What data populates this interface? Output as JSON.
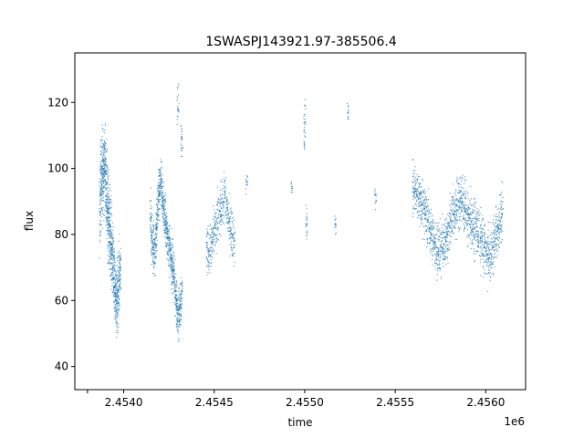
{
  "colors": {
    "points": "#1f77b4",
    "axes": "#000000",
    "background": "#ffffff"
  },
  "chart_data": {
    "type": "scatter",
    "title": "1SWASPJ143921.97-385506.4",
    "xlabel": "time",
    "ylabel": "flux",
    "x_offset_label": "1e6",
    "x_ticks": [
      2453800,
      2454000,
      2454500,
      2455000,
      2455500,
      2456000
    ],
    "x_tick_labels": [
      "",
      "2.4540",
      "2.4545",
      "2.4550",
      "2.4555",
      "2.4560"
    ],
    "y_ticks": [
      40,
      60,
      80,
      100,
      120
    ],
    "y_tick_labels": [
      "40",
      "60",
      "80",
      "100",
      "120"
    ],
    "xlim": [
      2453730,
      2456220
    ],
    "ylim": [
      33,
      135
    ],
    "grid": false,
    "legend": "none",
    "marker": "small dots",
    "series": [
      {
        "x": [
          2453870,
          2453875,
          2453880,
          2453885,
          2453890,
          2453895,
          2453900,
          2453905,
          2453910,
          2453915,
          2453920,
          2453925,
          2453930,
          2453935,
          2453940,
          2453945,
          2453950,
          2453955,
          2453960,
          2453965,
          2453970,
          2453975,
          2453980,
          2454150,
          2454155,
          2454160,
          2454165,
          2454170,
          2454175,
          2454180,
          2454185,
          2454190,
          2454195,
          2454200,
          2454205,
          2454210,
          2454215,
          2454220,
          2454225,
          2454230,
          2454235,
          2454240,
          2454245,
          2454250,
          2454255,
          2454260,
          2454265,
          2454270,
          2454275,
          2454280,
          2454285,
          2454290,
          2454295,
          2454300,
          2454305,
          2454310,
          2454315,
          2454320,
          2454460,
          2454470,
          2454480,
          2454490,
          2454500,
          2454510,
          2454520,
          2454530,
          2454540,
          2454550,
          2454560,
          2454570,
          2454580,
          2454590,
          2454600,
          2454610,
          2455600,
          2455610,
          2455620,
          2455630,
          2455640,
          2455650,
          2455660,
          2455670,
          2455680,
          2455690,
          2455700,
          2455710,
          2455720,
          2455730,
          2455740,
          2455750,
          2455760,
          2455770,
          2455780,
          2455790,
          2455800,
          2455810,
          2455820,
          2455830,
          2455840,
          2455850,
          2455860,
          2455870,
          2455880,
          2455890,
          2455900,
          2455910,
          2455920,
          2455930,
          2455940,
          2455950,
          2455960,
          2455970,
          2455980,
          2455990,
          2456000,
          2456010,
          2456020,
          2456030,
          2456040,
          2456050,
          2456060,
          2456070,
          2456080,
          2456090,
          2454300,
          2454320,
          2454680,
          2454930,
          2455000,
          2455010,
          2455170,
          2455240,
          2455390
        ],
        "y": [
          87,
          96,
          100,
          97,
          100,
          101,
          99,
          94,
          88,
          85,
          83,
          81,
          77,
          74,
          70,
          67,
          64,
          62,
          60,
          59,
          63,
          66,
          69,
          85,
          80,
          78,
          76,
          74,
          77,
          82,
          86,
          90,
          92,
          95,
          96,
          94,
          91,
          88,
          86,
          84,
          82,
          81,
          79,
          77,
          75,
          73,
          71,
          70,
          69,
          67,
          63,
          60,
          58,
          57,
          56,
          58,
          60,
          62,
          76,
          75,
          76,
          78,
          80,
          82,
          85,
          87,
          88,
          90,
          91,
          88,
          84,
          82,
          80,
          78,
          94,
          93,
          92,
          91,
          90,
          89,
          88,
          86,
          84,
          82,
          80,
          78,
          77,
          76,
          75,
          75,
          76,
          77,
          78,
          80,
          82,
          84,
          86,
          87,
          89,
          90,
          91,
          90,
          88,
          87,
          86,
          85,
          84,
          83,
          82,
          81,
          80,
          79,
          78,
          76,
          75,
          74,
          73,
          74,
          76,
          78,
          80,
          82,
          84,
          86,
          118,
          109,
          96,
          94,
          114,
          83,
          83,
          117,
          92
        ],
        "band": [
          14,
          14,
          14,
          14,
          14,
          14,
          14,
          14,
          14,
          14,
          14,
          14,
          14,
          14,
          12,
          12,
          12,
          12,
          12,
          12,
          12,
          12,
          12,
          8,
          8,
          8,
          8,
          8,
          8,
          8,
          8,
          8,
          8,
          8,
          8,
          8,
          8,
          8,
          8,
          8,
          8,
          8,
          8,
          8,
          8,
          8,
          8,
          8,
          8,
          8,
          8,
          8,
          8,
          8,
          8,
          8,
          8,
          8,
          8,
          8,
          8,
          8,
          8,
          8,
          8,
          8,
          8,
          8,
          8,
          8,
          8,
          8,
          8,
          8,
          9,
          9,
          9,
          9,
          9,
          9,
          9,
          9,
          9,
          9,
          9,
          9,
          9,
          9,
          9,
          9,
          9,
          9,
          9,
          9,
          9,
          9,
          9,
          9,
          9,
          9,
          9,
          9,
          9,
          9,
          9,
          9,
          9,
          9,
          9,
          9,
          9,
          9,
          9,
          9,
          9,
          9,
          9,
          9,
          9,
          9,
          9,
          9,
          9,
          9,
          7,
          8,
          4,
          3,
          10,
          6,
          4,
          4,
          4
        ]
      }
    ]
  }
}
